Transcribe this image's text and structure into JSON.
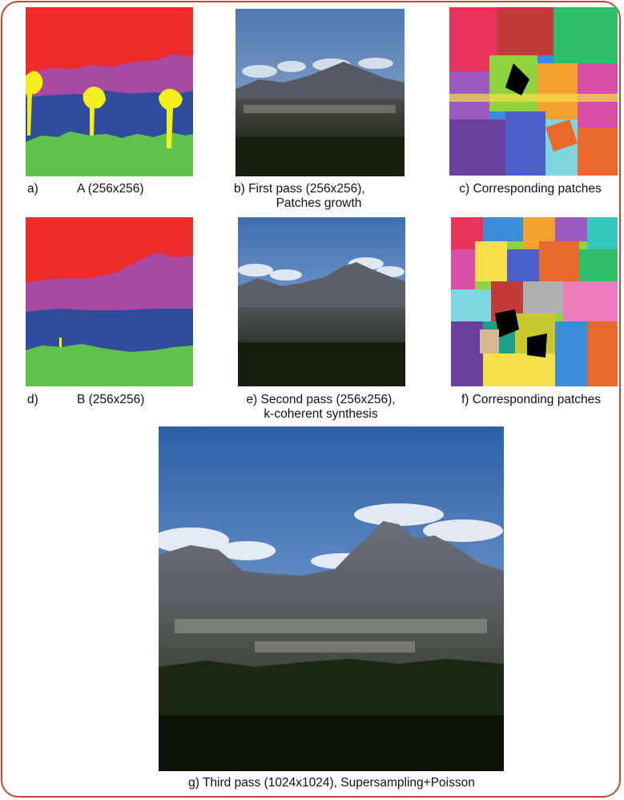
{
  "figure": {
    "panels": [
      {
        "id": "a",
        "letter": "a)",
        "caption": "A (256x256)"
      },
      {
        "id": "b",
        "caption_line1": "b) First pass (256x256),",
        "caption_line2": "Patches growth"
      },
      {
        "id": "c",
        "caption": "c) Corresponding patches"
      },
      {
        "id": "d",
        "letter": "d)",
        "caption": "B (256x256)"
      },
      {
        "id": "e",
        "caption_line1": "e) Second pass (256x256),",
        "caption_line2": "k-coherent synthesis"
      },
      {
        "id": "f",
        "caption": "f) Corresponding patches"
      },
      {
        "id": "g",
        "caption": "g) Third pass (1024x1024), Supersampling+Poisson"
      }
    ],
    "label_colors": {
      "sky": "#ed2b2a",
      "mountain": "#a84aa4",
      "city": "#2f4d9c",
      "vegetation": "#5fc24a",
      "tree": "#f4ee1c"
    },
    "patch_palette": [
      "#e8345a",
      "#3a8dd8",
      "#8fd43c",
      "#f2a030",
      "#9b59c2",
      "#35c9c0",
      "#d94fa8",
      "#f5e04a",
      "#4a5fc8",
      "#e86a2a",
      "#2fbf6a",
      "#c23a3a",
      "#7fd6e0",
      "#b0b0b0",
      "#f07ac0",
      "#6b3fa0",
      "#1f9e8a",
      "#c8c830",
      "#000000",
      "#d8b890"
    ]
  }
}
